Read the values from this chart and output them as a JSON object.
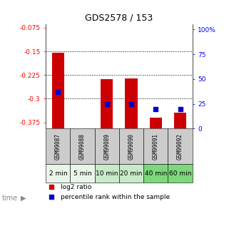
{
  "title": "GDS2578 / 153",
  "samples": [
    "GSM99087",
    "GSM99088",
    "GSM99089",
    "GSM99090",
    "GSM99091",
    "GSM99092"
  ],
  "time_labels": [
    "2 min",
    "5 min",
    "10 min",
    "20 min",
    "40 min",
    "60 min"
  ],
  "log2_ratio": [
    -0.155,
    0.0,
    -0.237,
    -0.235,
    -0.36,
    -0.345
  ],
  "percentile_rank": [
    37,
    0,
    25,
    25,
    20,
    20
  ],
  "ylim_left": [
    -0.395,
    -0.065
  ],
  "ylim_right": [
    0,
    105
  ],
  "yticks_left": [
    -0.375,
    -0.3,
    -0.225,
    -0.15,
    -0.075
  ],
  "yticks_right": [
    0,
    25,
    50,
    75,
    100
  ],
  "ytick_labels_left": [
    "-0.375",
    "-0.3",
    "-0.225",
    "-0.15",
    "-0.075"
  ],
  "ytick_labels_right": [
    "0",
    "25",
    "50",
    "75",
    "100%"
  ],
  "hlines": [
    -0.15,
    -0.225,
    -0.3
  ],
  "bar_color": "#cc0000",
  "dot_color": "#0000cc",
  "bar_width": 0.5,
  "dot_size": 18,
  "time_cell_colors": [
    "#e8f5e8",
    "#e8f5e8",
    "#c8eac8",
    "#c8eac8",
    "#7dd87d",
    "#7dd87d"
  ],
  "gsm_bg_color": "#cccccc",
  "title_fontsize": 9,
  "tick_fontsize": 6.5,
  "legend_fontsize": 6.5,
  "time_label_fontsize": 6.5,
  "gsm_fontsize": 5.5
}
